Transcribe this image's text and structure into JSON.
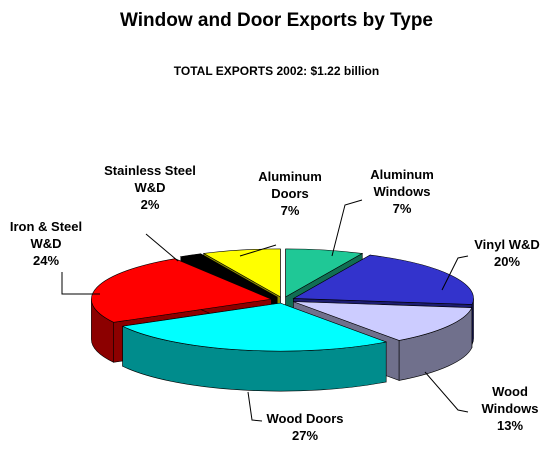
{
  "chart_data": {
    "type": "pie3d",
    "title": "Window and Door Exports by Type",
    "subtitle": "TOTAL EXPORTS 2002: $1.22 billion",
    "categories": [
      "Aluminum Windows",
      "Vinyl W&D",
      "Wood Windows",
      "Wood Doors",
      "Iron & Steel W&D",
      "Stainless Steel W&D",
      "Aluminum Doors"
    ],
    "values": [
      7,
      20,
      13,
      27,
      24,
      2,
      7
    ],
    "value_labels": [
      "7%",
      "20%",
      "13%",
      "27%",
      "24%",
      "2%",
      "7%"
    ],
    "colors": [
      "#1fc896",
      "#3333cc",
      "#ccccff",
      "#00ffff",
      "#ff0000",
      "#000000",
      "#ffff00"
    ]
  }
}
